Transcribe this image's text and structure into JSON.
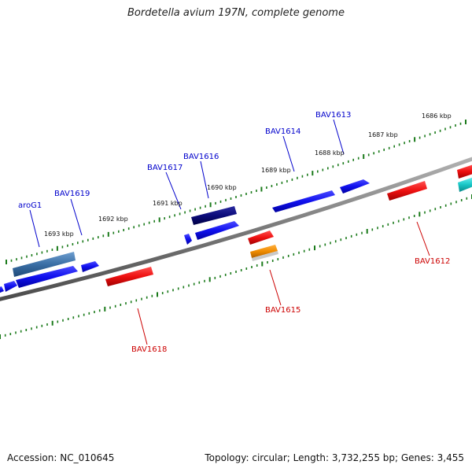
{
  "title": "Bordetella avium 197N, complete genome",
  "footer": {
    "accession": "Accession: NC_010645",
    "summary": "Topology: circular; Length: 3,732,255 bp; Genes: 3,455"
  },
  "colors": {
    "forward_strand": "#1010ee",
    "reverse_strand": "#e81010",
    "forward_label": "#0000cc",
    "reverse_label": "#cc0000",
    "backbone": "#8a8a8a",
    "tick": "#1a7a1a",
    "highlight_dark": "#0a0a7a",
    "highlight_steel": "#3a6ea5",
    "highlight_orange": "#f08c00",
    "highlight_cyan": "#19c7c7"
  },
  "kbp_labels": [
    "1686 kbp",
    "1687 kbp",
    "1688 kbp",
    "1689 kbp",
    "1690 kbp",
    "1691 kbp",
    "1692 kbp",
    "1693 kbp"
  ],
  "genes_forward": [
    {
      "name": "BAV1613"
    },
    {
      "name": "BAV1614"
    },
    {
      "name": "BAV1616"
    },
    {
      "name": "BAV1617"
    },
    {
      "name": "BAV1619"
    },
    {
      "name": "aroG1"
    }
  ],
  "genes_reverse": [
    {
      "name": "BAV1612"
    },
    {
      "name": "BAV1615"
    },
    {
      "name": "BAV1618"
    }
  ]
}
